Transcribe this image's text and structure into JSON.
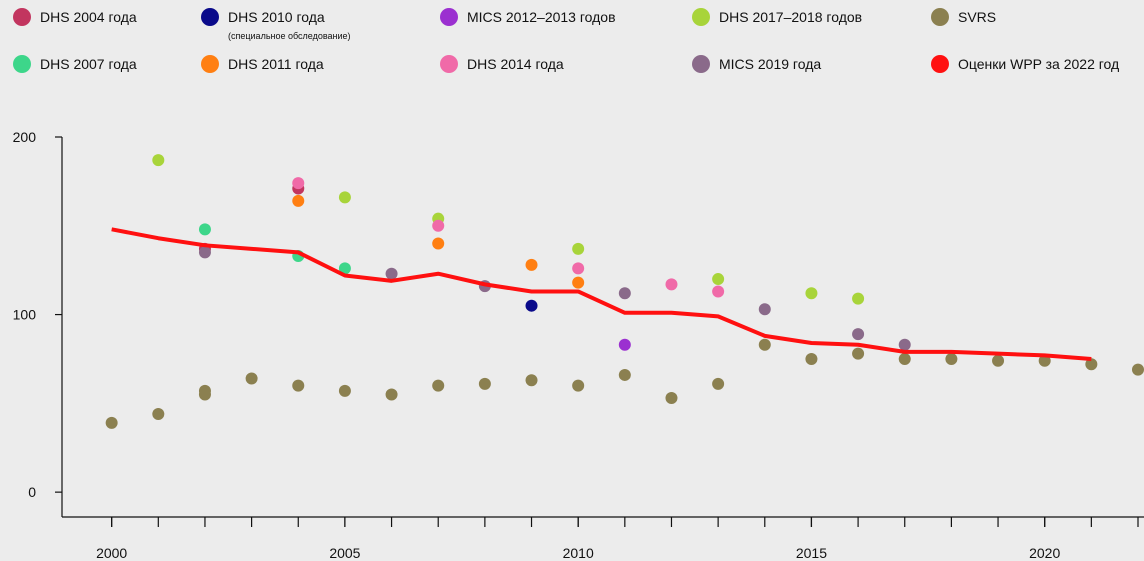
{
  "chart_data": {
    "type": "scatter",
    "xlim": [
      1999,
      2022
    ],
    "ylim": [
      -14,
      200
    ],
    "xticks": [
      2000,
      2005,
      2010,
      2015,
      2020
    ],
    "xminor_ticks": [
      2000,
      2001,
      2002,
      2003,
      2004,
      2005,
      2006,
      2007,
      2008,
      2009,
      2010,
      2011,
      2012,
      2013,
      2014,
      2015,
      2016,
      2017,
      2018,
      2019,
      2020,
      2021,
      2022
    ],
    "yticks": [
      0,
      100,
      200
    ],
    "series": [
      {
        "name": "DHS 2004 года",
        "type": "scatter",
        "color": "#c2355f",
        "x": [
          2002,
          2004
        ],
        "values": [
          137,
          171
        ]
      },
      {
        "name": "DHS 2010 года",
        "legend_note": "(специальное обследование)",
        "type": "scatter",
        "color": "#0a0a8a",
        "x": [
          2009
        ],
        "values": [
          105
        ]
      },
      {
        "name": "MICS 2012–2013 годов",
        "type": "scatter",
        "color": "#9b30d0",
        "x": [
          2011
        ],
        "values": [
          83
        ]
      },
      {
        "name": "DHS 2017–2018 годов",
        "type": "scatter",
        "color": "#a8d43a",
        "x": [
          2001,
          2005,
          2007,
          2010,
          2013,
          2015,
          2016
        ],
        "values": [
          187,
          166,
          154,
          137,
          120,
          112,
          109
        ]
      },
      {
        "name": "SVRS",
        "type": "scatter",
        "color": "#8b8050",
        "x": [
          2000,
          2001,
          2002,
          2002,
          2003,
          2004,
          2005,
          2006,
          2007,
          2008,
          2009,
          2010,
          2011,
          2012,
          2013,
          2014,
          2015,
          2016,
          2017,
          2018,
          2019,
          2020,
          2021,
          2022
        ],
        "values": [
          39,
          44,
          57,
          55,
          64,
          60,
          57,
          55,
          60,
          61,
          63,
          60,
          66,
          53,
          61,
          83,
          75,
          78,
          75,
          75,
          74,
          74,
          72,
          69
        ]
      },
      {
        "name": "DHS 2007 года",
        "type": "scatter",
        "color": "#3dd68a",
        "x": [
          2002,
          2004,
          2005
        ],
        "values": [
          148,
          133,
          126
        ]
      },
      {
        "name": "DHS 2011 года",
        "type": "scatter",
        "color": "#ff7f12",
        "x": [
          2004,
          2007,
          2009,
          2010
        ],
        "values": [
          164,
          140,
          128,
          118
        ]
      },
      {
        "name": "DHS 2014 года",
        "type": "scatter",
        "color": "#f06aa8",
        "x": [
          2004,
          2007,
          2010,
          2012,
          2013
        ],
        "values": [
          174,
          150,
          126,
          117,
          113
        ]
      },
      {
        "name": "MICS 2019 года",
        "type": "scatter",
        "color": "#8a6a8a",
        "x": [
          2002,
          2006,
          2008,
          2011,
          2014,
          2016,
          2017
        ],
        "values": [
          135,
          123,
          116,
          112,
          103,
          89,
          83
        ]
      },
      {
        "name": "Оценки WPP за 2022 год",
        "type": "line",
        "color": "#ff1010",
        "x": [
          2000,
          2001,
          2002,
          2003,
          2004,
          2005,
          2006,
          2007,
          2008,
          2009,
          2010,
          2011,
          2012,
          2013,
          2014,
          2015,
          2016,
          2017,
          2018,
          2019,
          2020,
          2021
        ],
        "values": [
          148,
          143,
          139,
          137,
          135,
          122,
          119,
          123,
          117,
          113,
          113,
          101,
          101,
          99,
          88,
          84,
          83,
          79,
          79,
          78,
          77,
          75
        ]
      }
    ]
  }
}
